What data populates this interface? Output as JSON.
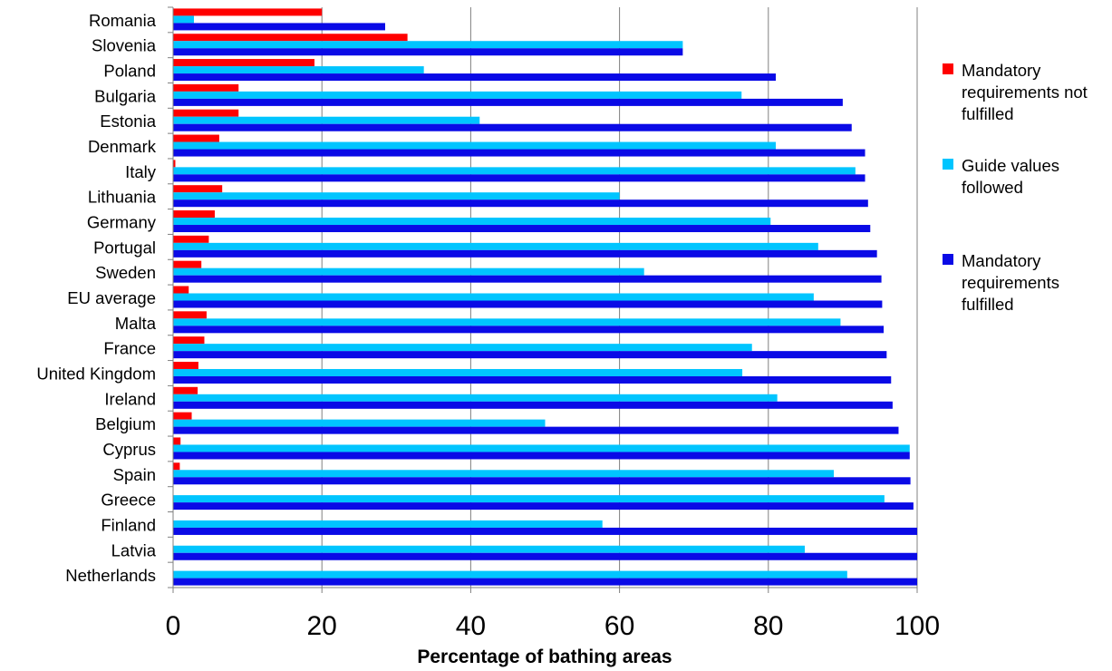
{
  "chart_data": {
    "type": "bar",
    "orientation": "horizontal",
    "xlabel": "Percentage of bathing areas",
    "ylabel": "",
    "xlim": [
      0,
      100
    ],
    "xticks": [
      "0",
      "20",
      "40",
      "60",
      "80",
      "100"
    ],
    "grid": "vertical",
    "legend_position": "right",
    "categories": [
      "Romania",
      "Slovenia",
      "Poland",
      "Bulgaria",
      "Estonia",
      "Denmark",
      "Italy",
      "Lithuania",
      "Germany",
      "Portugal",
      "Sweden",
      "EU average",
      "Malta",
      "France",
      "United Kingdom",
      "Ireland",
      "Belgium",
      "Cyprus",
      "Spain",
      "Greece",
      "Finland",
      "Latvia",
      "Netherlands"
    ],
    "series": [
      {
        "name_lines": [
          "Mandatory",
          "requirements not",
          "fulfilled"
        ],
        "color": "#ff0000",
        "values": [
          20.0,
          31.5,
          19.0,
          8.8,
          8.8,
          6.2,
          0.3,
          6.6,
          5.6,
          4.8,
          3.8,
          2.1,
          4.5,
          4.2,
          3.4,
          3.3,
          2.5,
          1.0,
          0.9,
          0,
          0,
          0,
          0
        ]
      },
      {
        "name_lines": [
          "Guide values",
          "followed"
        ],
        "color": "#00c5ff",
        "values": [
          2.8,
          68.5,
          33.7,
          76.4,
          41.2,
          81.0,
          91.7,
          60.0,
          80.3,
          86.7,
          63.3,
          86.1,
          89.7,
          77.8,
          76.5,
          81.2,
          50.0,
          99.0,
          88.8,
          95.6,
          57.7,
          84.9,
          90.6
        ]
      },
      {
        "name_lines": [
          "Mandatory",
          "requirements",
          "fulfilled"
        ],
        "color": "#0a0ae6",
        "values": [
          28.5,
          68.5,
          81.0,
          90.0,
          91.2,
          93.0,
          93.0,
          93.4,
          93.7,
          94.6,
          95.2,
          95.3,
          95.5,
          95.9,
          96.5,
          96.7,
          97.5,
          99.0,
          99.1,
          99.5,
          100,
          100,
          100
        ]
      }
    ]
  }
}
